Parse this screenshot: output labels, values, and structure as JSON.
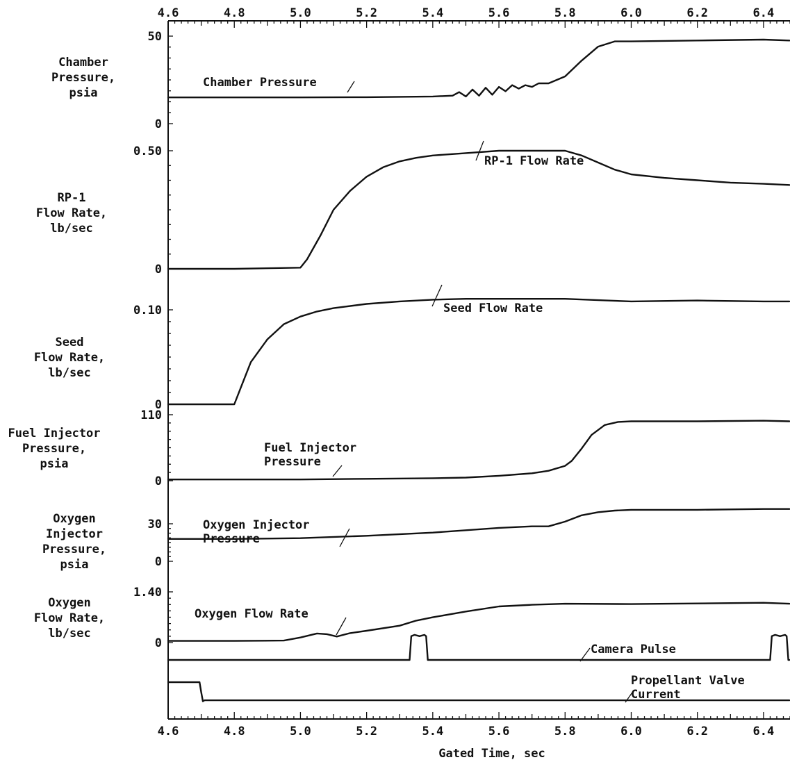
{
  "chart_data": {
    "type": "line",
    "xlabel": "Gated Time, sec",
    "xlim": [
      4.6,
      6.48
    ],
    "x_ticks": [
      "4.6",
      "4.8",
      "5.0",
      "5.2",
      "5.4",
      "5.6",
      "5.8",
      "6.0",
      "6.2",
      "6.4"
    ],
    "panels": [
      {
        "id": "chamber",
        "ylabel": [
          "Chamber",
          "Pressure,",
          "psia"
        ],
        "ylim": [
          0,
          50
        ],
        "y_ticks": [
          {
            "label": "50",
            "value": 50
          },
          {
            "label": "0",
            "value": 0
          }
        ],
        "series": [
          {
            "name": "Chamber Pressure",
            "x": [
              4.6,
              4.8,
              5.0,
              5.2,
              5.4,
              5.46,
              5.48,
              5.5,
              5.52,
              5.54,
              5.56,
              5.58,
              5.6,
              5.62,
              5.64,
              5.66,
              5.68,
              5.7,
              5.72,
              5.75,
              5.8,
              5.85,
              5.9,
              5.95,
              6.0,
              6.2,
              6.4,
              6.48
            ],
            "y": [
              15.0,
              15.0,
              15.0,
              15.1,
              15.5,
              16.0,
              18.0,
              15.5,
              19.5,
              16.0,
              20.5,
              16.5,
              21.0,
              18.5,
              22.0,
              20.0,
              22.0,
              21.0,
              23.0,
              23.0,
              27.0,
              36.0,
              44.0,
              47.0,
              47.0,
              47.5,
              48.0,
              47.5
            ]
          }
        ]
      },
      {
        "id": "rp1",
        "ylabel": [
          "RP-1",
          "Flow Rate,",
          "lb/sec"
        ],
        "ylim": [
          0,
          0.5
        ],
        "y_ticks": [
          {
            "label": "0.50",
            "value": 0.5
          },
          {
            "label": "0",
            "value": 0
          }
        ],
        "series": [
          {
            "name": "RP-1 Flow Rate",
            "x": [
              4.6,
              4.8,
              5.0,
              5.02,
              5.06,
              5.1,
              5.15,
              5.2,
              5.25,
              5.3,
              5.35,
              5.4,
              5.5,
              5.6,
              5.7,
              5.8,
              5.85,
              5.9,
              5.95,
              6.0,
              6.1,
              6.2,
              6.3,
              6.4,
              6.48
            ],
            "y": [
              0.0,
              0.0,
              0.005,
              0.04,
              0.14,
              0.25,
              0.33,
              0.39,
              0.43,
              0.455,
              0.47,
              0.48,
              0.49,
              0.5,
              0.5,
              0.5,
              0.48,
              0.45,
              0.42,
              0.4,
              0.385,
              0.375,
              0.365,
              0.36,
              0.355
            ]
          }
        ]
      },
      {
        "id": "seed",
        "ylabel": [
          "Seed",
          "Flow Rate,",
          "lb/sec"
        ],
        "ylim": [
          0,
          0.14
        ],
        "y_ticks": [
          {
            "label": "0.10",
            "value": 0.1
          },
          {
            "label": "0",
            "value": 0
          }
        ],
        "series": [
          {
            "name": "Seed Flow Rate",
            "x": [
              4.6,
              4.7,
              4.8,
              4.82,
              4.85,
              4.9,
              4.95,
              5.0,
              5.05,
              5.1,
              5.2,
              5.3,
              5.4,
              5.5,
              5.6,
              5.8,
              6.0,
              6.2,
              6.4,
              6.48
            ],
            "y": [
              0.0,
              0.0,
              0.0,
              0.02,
              0.05,
              0.077,
              0.095,
              0.104,
              0.11,
              0.114,
              0.119,
              0.122,
              0.124,
              0.125,
              0.125,
              0.125,
              0.122,
              0.123,
              0.122,
              0.122
            ]
          }
        ]
      },
      {
        "id": "fuelinj",
        "ylabel": [
          "Fuel Injector",
          "Pressure,",
          "psia"
        ],
        "ylim": [
          0,
          110
        ],
        "y_ticks": [
          {
            "label": "110",
            "value": 110
          },
          {
            "label": "0",
            "value": 0
          }
        ],
        "series": [
          {
            "name": "Fuel Injector Pressure",
            "x": [
              4.6,
              4.8,
              5.0,
              5.2,
              5.4,
              5.5,
              5.6,
              5.7,
              5.75,
              5.8,
              5.82,
              5.85,
              5.88,
              5.92,
              5.96,
              6.0,
              6.2,
              6.4,
              6.48
            ],
            "y": [
              2.0,
              2.0,
              2.0,
              3.0,
              4.0,
              5.0,
              8.0,
              12.0,
              16.0,
              24.0,
              32.0,
              52.0,
              74.0,
              90.0,
              95.0,
              96.0,
              96.0,
              97.0,
              96.0
            ]
          }
        ]
      },
      {
        "id": "oxinj",
        "ylabel": [
          "Oxygen",
          "Injector",
          "Pressure,",
          "psia"
        ],
        "ylim": [
          0,
          30
        ],
        "y_ticks": [
          {
            "label": "30",
            "value": 30
          },
          {
            "label": "0",
            "value": 0
          }
        ],
        "series": [
          {
            "name": "Oxygen Injector Pressure",
            "x": [
              4.6,
              4.8,
              5.0,
              5.2,
              5.4,
              5.5,
              5.6,
              5.7,
              5.75,
              5.8,
              5.85,
              5.9,
              5.95,
              6.0,
              6.2,
              6.4,
              6.48
            ],
            "y": [
              12.0,
              12.0,
              12.5,
              14.0,
              16.0,
              17.5,
              19.0,
              20.0,
              20.0,
              23.0,
              27.0,
              29.0,
              30.0,
              30.5,
              30.5,
              31.0,
              31.0
            ]
          }
        ]
      },
      {
        "id": "oxflow",
        "ylabel": [
          "Oxygen",
          "Flow Rate,",
          "lb/sec"
        ],
        "ylim": [
          0,
          1.4
        ],
        "y_ticks": [
          {
            "label": "1.40",
            "value": 1.4
          },
          {
            "label": "0",
            "value": 0
          }
        ],
        "series": [
          {
            "name": "Oxygen Flow Rate",
            "x": [
              4.6,
              4.8,
              4.95,
              5.0,
              5.05,
              5.08,
              5.11,
              5.15,
              5.2,
              5.3,
              5.35,
              5.4,
              5.5,
              5.6,
              5.7,
              5.8,
              6.0,
              6.2,
              6.4,
              6.48
            ],
            "y": [
              0.05,
              0.05,
              0.06,
              0.15,
              0.27,
              0.25,
              0.18,
              0.28,
              0.35,
              0.5,
              0.65,
              0.75,
              0.92,
              1.07,
              1.12,
              1.15,
              1.14,
              1.16,
              1.18,
              1.15
            ]
          }
        ]
      },
      {
        "id": "camera",
        "ylabel": [],
        "ylim": [
          0,
          1
        ],
        "y_ticks": [],
        "series": [
          {
            "name": "Camera Pulse",
            "x": [
              4.6,
              5.33,
              5.335,
              5.345,
              5.36,
              5.375,
              5.38,
              5.385,
              6.42,
              6.425,
              6.435,
              6.45,
              6.465,
              6.47,
              6.475,
              6.48
            ],
            "y": [
              0,
              0,
              0.9,
              0.95,
              0.9,
              0.95,
              0.9,
              0,
              0,
              0.9,
              0.95,
              0.9,
              0.95,
              0.9,
              0,
              0
            ]
          }
        ]
      },
      {
        "id": "valve",
        "ylabel": [],
        "ylim": [
          0,
          1
        ],
        "y_ticks": [],
        "series": [
          {
            "name": "Propellant Valve Current",
            "x": [
              4.6,
              4.695,
              4.7,
              4.705,
              4.71,
              6.48
            ],
            "y": [
              1,
              1,
              0.5,
              0.05,
              0.1,
              0.1
            ]
          }
        ]
      }
    ],
    "annotations": [
      {
        "panel": "chamber",
        "lines": [
          "Chamber Pressure"
        ]
      },
      {
        "panel": "rp1",
        "lines": [
          "RP-1 Flow Rate"
        ]
      },
      {
        "panel": "seed",
        "lines": [
          "Seed Flow Rate"
        ]
      },
      {
        "panel": "fuelinj",
        "lines": [
          "Fuel Injector",
          "Pressure"
        ]
      },
      {
        "panel": "oxinj",
        "lines": [
          "Oxygen Injector",
          "Pressure"
        ]
      },
      {
        "panel": "oxflow",
        "lines": [
          "Oxygen Flow Rate"
        ]
      },
      {
        "panel": "camera",
        "lines": [
          "Camera Pulse"
        ]
      },
      {
        "panel": "valve",
        "lines": [
          "Propellant Valve",
          "Current"
        ]
      }
    ]
  }
}
